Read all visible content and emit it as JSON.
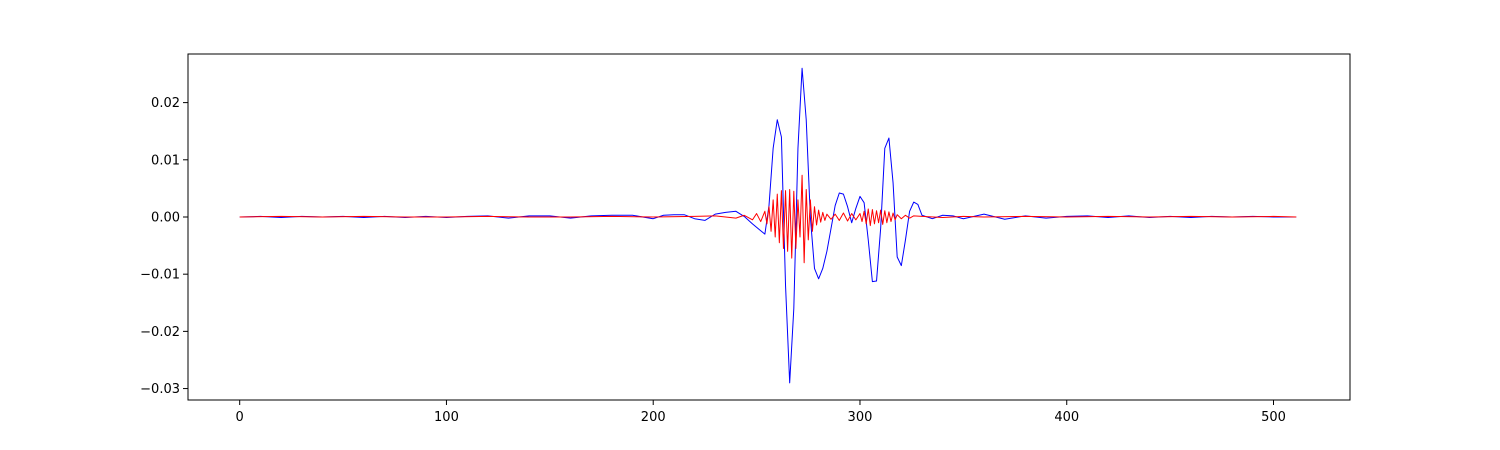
{
  "chart_data": {
    "type": "line",
    "title": "",
    "xlabel": "",
    "ylabel": "",
    "xlim": [
      -25,
      537
    ],
    "ylim": [
      -0.032,
      0.0285
    ],
    "grid": false,
    "legend": "none",
    "x_ticks": [
      0,
      100,
      200,
      300,
      400,
      500
    ],
    "x_tick_labels": [
      "0",
      "100",
      "200",
      "300",
      "400",
      "500"
    ],
    "y_ticks": [
      -0.03,
      -0.02,
      -0.01,
      0.0,
      0.01,
      0.02
    ],
    "y_tick_labels": [
      "−0.03",
      "−0.02",
      "−0.01",
      "0.00",
      "0.01",
      "0.02"
    ],
    "series": [
      {
        "color": "#0000ff",
        "x": [
          0,
          10,
          20,
          30,
          40,
          50,
          60,
          70,
          80,
          90,
          100,
          110,
          120,
          130,
          140,
          150,
          160,
          170,
          180,
          190,
          200,
          205,
          210,
          215,
          220,
          225,
          230,
          235,
          240,
          244,
          248,
          252,
          254,
          256,
          258,
          260,
          262,
          264,
          266,
          268,
          270,
          272,
          274,
          276,
          278,
          280,
          282,
          284,
          286,
          288,
          290,
          292,
          294,
          296,
          298,
          300,
          302,
          304,
          306,
          308,
          310,
          312,
          314,
          316,
          318,
          320,
          322,
          324,
          326,
          328,
          330,
          335,
          340,
          345,
          350,
          360,
          370,
          380,
          390,
          400,
          410,
          420,
          430,
          440,
          450,
          460,
          470,
          480,
          490,
          500,
          511
        ],
        "y": [
          0.0,
          0.0001,
          -0.0001,
          0.0001,
          0.0,
          0.0001,
          -0.0001,
          0.0001,
          -0.0001,
          0.0001,
          -0.0001,
          0.0001,
          0.0002,
          -0.0002,
          0.0002,
          0.0002,
          -0.0002,
          0.0002,
          0.0003,
          0.0003,
          -0.0003,
          0.0003,
          0.0004,
          0.0004,
          -0.0003,
          -0.0006,
          0.0005,
          0.0008,
          0.001,
          0.0001,
          -0.0012,
          -0.0024,
          -0.003,
          0.002,
          0.012,
          0.017,
          0.014,
          -0.012,
          -0.029,
          -0.016,
          0.012,
          0.026,
          0.017,
          0.0,
          -0.009,
          -0.0108,
          -0.009,
          -0.006,
          -0.002,
          0.002,
          0.0042,
          0.004,
          0.0018,
          -0.001,
          0.0015,
          0.0036,
          0.0025,
          -0.004,
          -0.0113,
          -0.0112,
          -0.002,
          0.012,
          0.0138,
          0.006,
          -0.007,
          -0.0085,
          -0.004,
          0.001,
          0.0026,
          0.0022,
          0.0003,
          -0.0003,
          0.0003,
          0.0002,
          -0.0003,
          0.0005,
          -0.0004,
          0.0002,
          -0.0002,
          0.0001,
          0.0002,
          -0.0001,
          0.0002,
          -0.0001,
          0.0001,
          -0.0001,
          0.0001,
          0.0,
          0.0001,
          0.0,
          0.0
        ]
      },
      {
        "color": "#ff0000",
        "x": [
          0,
          20,
          40,
          60,
          80,
          100,
          120,
          140,
          160,
          180,
          200,
          220,
          230,
          240,
          244,
          248,
          250,
          252,
          254,
          255,
          256,
          257,
          258,
          259,
          260,
          261,
          262,
          263,
          264,
          265,
          266,
          267,
          268,
          269,
          270,
          271,
          272,
          273,
          274,
          275,
          276,
          277,
          278,
          279,
          280,
          281,
          282,
          283,
          284,
          286,
          288,
          290,
          292,
          294,
          296,
          298,
          300,
          301,
          302,
          303,
          304,
          305,
          306,
          307,
          308,
          309,
          310,
          311,
          312,
          313,
          314,
          315,
          316,
          317,
          318,
          320,
          322,
          324,
          326,
          330,
          340,
          350,
          360,
          380,
          400,
          420,
          440,
          460,
          480,
          500,
          511
        ],
        "y": [
          0.0,
          0.0001,
          0.0,
          0.0001,
          0.0,
          0.0,
          0.0001,
          0.0,
          0.0,
          0.0001,
          0.0,
          0.0001,
          0.0002,
          -0.0002,
          0.0003,
          -0.0005,
          0.0006,
          -0.0008,
          0.001,
          -0.0012,
          0.0018,
          -0.0025,
          0.003,
          -0.0035,
          0.004,
          -0.0045,
          0.0046,
          -0.0055,
          0.0046,
          -0.006,
          0.0048,
          -0.0072,
          0.0045,
          -0.0055,
          0.003,
          -0.0035,
          0.0073,
          -0.008,
          0.0048,
          -0.004,
          0.003,
          -0.0025,
          0.0018,
          -0.0014,
          0.0012,
          -0.0009,
          0.0008,
          -0.0006,
          0.0005,
          -0.0004,
          0.0005,
          -0.0006,
          0.0007,
          -0.0007,
          0.0006,
          -0.0005,
          0.0006,
          -0.0008,
          0.001,
          -0.0012,
          0.0014,
          -0.0015,
          0.0013,
          -0.0012,
          0.0011,
          -0.001,
          0.0012,
          -0.0013,
          0.0011,
          -0.001,
          0.0009,
          -0.0008,
          0.0007,
          -0.0005,
          0.0004,
          -0.0003,
          0.0003,
          -0.0002,
          0.0002,
          0.0001,
          -0.0001,
          0.0001,
          0.0,
          0.0001,
          0.0,
          0.0001,
          0.0,
          0.0001,
          0.0,
          0.0001,
          0.0
        ]
      }
    ]
  }
}
